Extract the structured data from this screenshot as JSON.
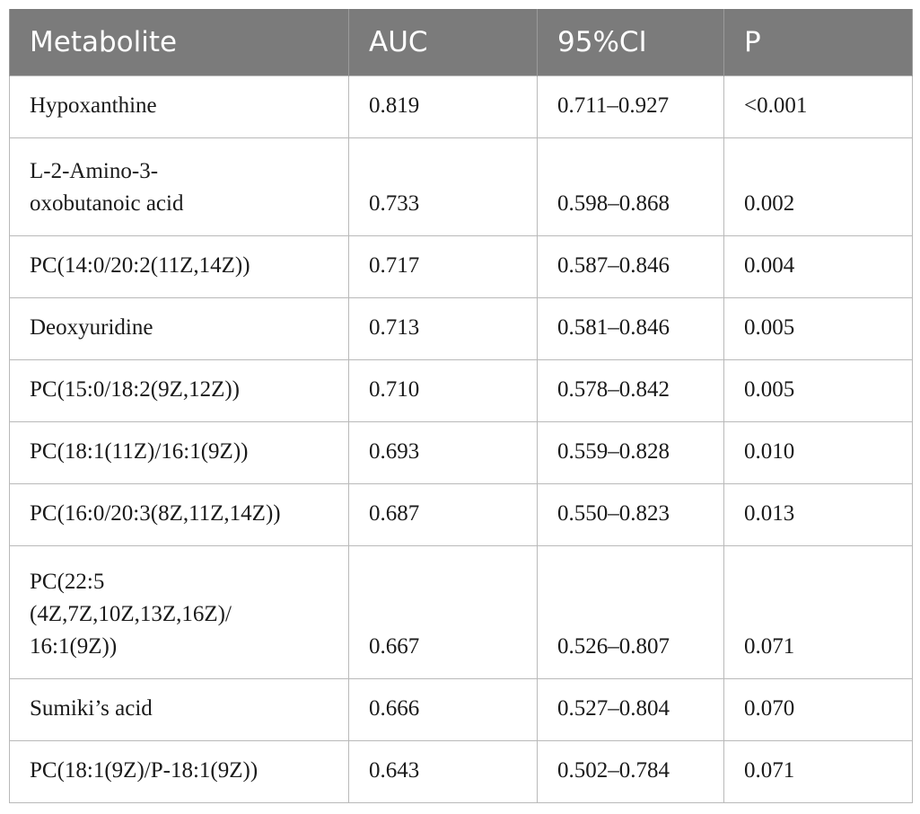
{
  "table": {
    "headers": [
      "Metabolite",
      "AUC",
      "95%CI",
      "P"
    ],
    "rows": [
      {
        "metabolite": "Hypoxanthine",
        "auc": "0.819",
        "ci": "0.711–0.927",
        "p": "<0.001"
      },
      {
        "metabolite": "L-2-Amino-3-\noxobutanoic acid",
        "auc": "0.733",
        "ci": "0.598–0.868",
        "p": "0.002"
      },
      {
        "metabolite": "PC(14:0/20:2(11Z,14Z))",
        "auc": "0.717",
        "ci": "0.587–0.846",
        "p": "0.004"
      },
      {
        "metabolite": "Deoxyuridine",
        "auc": "0.713",
        "ci": "0.581–0.846",
        "p": "0.005"
      },
      {
        "metabolite": "PC(15:0/18:2(9Z,12Z))",
        "auc": "0.710",
        "ci": "0.578–0.842",
        "p": "0.005"
      },
      {
        "metabolite": "PC(18:1(11Z)/16:1(9Z))",
        "auc": "0.693",
        "ci": "0.559–0.828",
        "p": "0.010"
      },
      {
        "metabolite": "PC(16:0/20:3(8Z,11Z,14Z))",
        "auc": "0.687",
        "ci": "0.550–0.823",
        "p": "0.013"
      },
      {
        "metabolite": "PC(22:5\n(4Z,7Z,10Z,13Z,16Z)/\n16:1(9Z))",
        "auc": "0.667",
        "ci": "0.526–0.807",
        "p": "0.071"
      },
      {
        "metabolite": "Sumiki’s acid",
        "auc": "0.666",
        "ci": "0.527–0.804",
        "p": "0.070"
      },
      {
        "metabolite": "PC(18:1(9Z)/P-18:1(9Z))",
        "auc": "0.643",
        "ci": "0.502–0.784",
        "p": "0.071"
      }
    ]
  }
}
